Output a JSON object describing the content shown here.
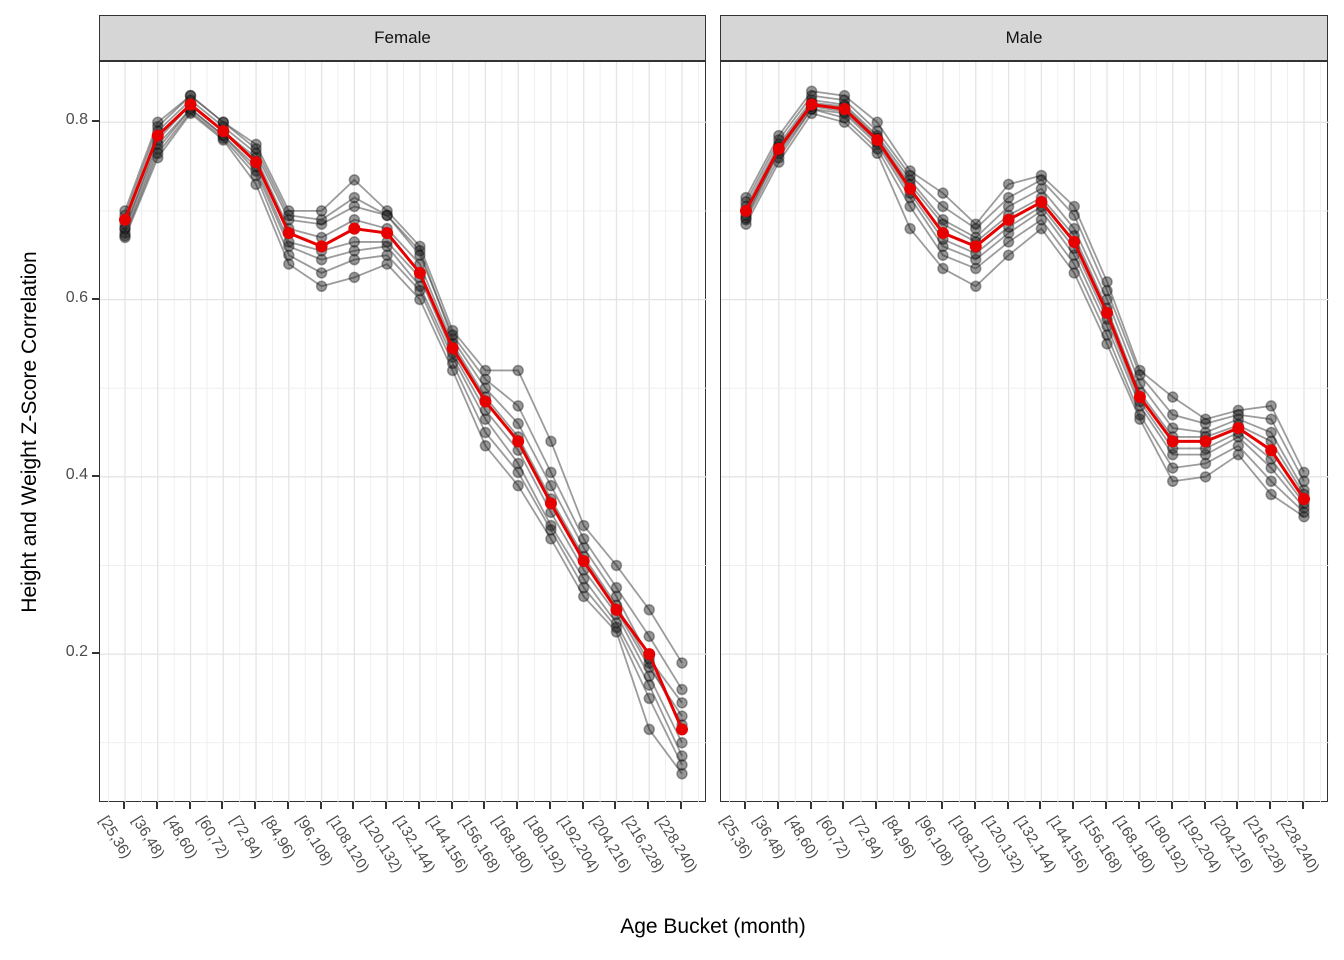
{
  "chart_data": {
    "type": "line",
    "title": "",
    "xlabel": "Age Bucket (month)",
    "ylabel": "Height and Weight Z-Score Correlation",
    "categories": [
      "[25,36)",
      "[36,48)",
      "[48,60)",
      "[60,72)",
      "[72,84)",
      "[84,96)",
      "[96,108)",
      "[108,120)",
      "[120,132)",
      "[132,144)",
      "[144,156)",
      "[156,168)",
      "[168,180)",
      "[180,192)",
      "[192,204)",
      "[204,216)",
      "[216,228)",
      "[228,240)"
    ],
    "yticks": [
      0.2,
      0.4,
      0.6,
      0.8
    ],
    "ylim": [
      0.032,
      0.868
    ],
    "grid": true,
    "legend": "none",
    "colors": {
      "mean_line": "#e60000",
      "individual_line": "#4a4a4a",
      "individual_point": "#1a1a1a",
      "grid_major": "#e4e4e4",
      "grid_minor": "#ededed",
      "strip_background": "#d6d6d6",
      "panel_border": "#333333",
      "axis_text": "#4d4d4d"
    },
    "facets": [
      {
        "label": "Female",
        "mean_series": {
          "name": "mean",
          "values": [
            0.69,
            0.785,
            0.82,
            0.79,
            0.755,
            0.675,
            0.66,
            0.68,
            0.675,
            0.63,
            0.545,
            0.485,
            0.44,
            0.37,
            0.305,
            0.25,
            0.2,
            0.115
          ]
        },
        "individual_series": [
          {
            "name": "individual_1",
            "values": [
              0.68,
              0.78,
              0.82,
              0.79,
              0.755,
              0.675,
              0.66,
              0.68,
              0.675,
              0.63,
              0.545,
              0.485,
              0.44,
              0.37,
              0.305,
              0.25,
              0.185,
              0.13
            ]
          },
          {
            "name": "individual_2",
            "values": [
              0.695,
              0.795,
              0.83,
              0.8,
              0.775,
              0.7,
              0.7,
              0.735,
              0.7,
              0.66,
              0.565,
              0.52,
              0.52,
              0.44,
              0.345,
              0.3,
              0.25,
              0.19
            ]
          },
          {
            "name": "individual_3",
            "values": [
              0.67,
              0.76,
              0.81,
              0.78,
              0.73,
              0.64,
              0.615,
              0.625,
              0.64,
              0.6,
              0.52,
              0.435,
              0.39,
              0.33,
              0.265,
              0.225,
              0.115,
              0.065
            ]
          },
          {
            "name": "individual_4",
            "values": [
              0.685,
              0.79,
              0.825,
              0.795,
              0.765,
              0.69,
              0.685,
              0.705,
              0.695,
              0.655,
              0.555,
              0.5,
              0.46,
              0.39,
              0.32,
              0.265,
              0.195,
              0.145
            ]
          },
          {
            "name": "individual_5",
            "values": [
              0.675,
              0.77,
              0.815,
              0.785,
              0.745,
              0.66,
              0.645,
              0.655,
              0.66,
              0.615,
              0.535,
              0.465,
              0.415,
              0.345,
              0.285,
              0.235,
              0.165,
              0.085
            ]
          },
          {
            "name": "individual_6",
            "values": [
              0.69,
              0.785,
              0.82,
              0.79,
              0.76,
              0.68,
              0.67,
              0.69,
              0.68,
              0.64,
              0.55,
              0.49,
              0.445,
              0.375,
              0.31,
              0.255,
              0.19,
              0.12
            ]
          },
          {
            "name": "individual_7",
            "values": [
              0.68,
              0.775,
              0.815,
              0.785,
              0.75,
              0.665,
              0.655,
              0.665,
              0.665,
              0.625,
              0.54,
              0.475,
              0.43,
              0.36,
              0.295,
              0.245,
              0.175,
              0.1
            ]
          },
          {
            "name": "individual_8",
            "values": [
              0.7,
              0.8,
              0.83,
              0.8,
              0.77,
              0.695,
              0.69,
              0.715,
              0.695,
              0.65,
              0.56,
              0.51,
              0.48,
              0.405,
              0.33,
              0.275,
              0.22,
              0.16
            ]
          },
          {
            "name": "individual_9",
            "values": [
              0.672,
              0.765,
              0.812,
              0.782,
              0.74,
              0.65,
              0.63,
              0.645,
              0.65,
              0.61,
              0.528,
              0.45,
              0.405,
              0.34,
              0.275,
              0.23,
              0.15,
              0.075
            ]
          }
        ]
      },
      {
        "label": "Male",
        "mean_series": {
          "name": "mean",
          "values": [
            0.7,
            0.77,
            0.82,
            0.815,
            0.78,
            0.725,
            0.675,
            0.66,
            0.69,
            0.71,
            0.665,
            0.585,
            0.49,
            0.44,
            0.44,
            0.455,
            0.43,
            0.375
          ]
        },
        "individual_series": [
          {
            "name": "individual_1",
            "values": [
              0.7,
              0.77,
              0.82,
              0.815,
              0.78,
              0.725,
              0.675,
              0.66,
              0.69,
              0.71,
              0.665,
              0.585,
              0.49,
              0.44,
              0.44,
              0.455,
              0.43,
              0.375
            ]
          },
          {
            "name": "individual_2",
            "values": [
              0.715,
              0.785,
              0.835,
              0.83,
              0.8,
              0.745,
              0.72,
              0.685,
              0.73,
              0.74,
              0.705,
              0.62,
              0.52,
              0.49,
              0.465,
              0.475,
              0.48,
              0.405
            ]
          },
          {
            "name": "individual_3",
            "values": [
              0.685,
              0.755,
              0.81,
              0.8,
              0.765,
              0.68,
              0.635,
              0.615,
              0.65,
              0.68,
              0.63,
              0.55,
              0.465,
              0.395,
              0.4,
              0.425,
              0.38,
              0.355
            ]
          },
          {
            "name": "individual_4",
            "values": [
              0.705,
              0.775,
              0.825,
              0.82,
              0.785,
              0.735,
              0.69,
              0.67,
              0.705,
              0.725,
              0.68,
              0.6,
              0.505,
              0.455,
              0.45,
              0.465,
              0.45,
              0.385
            ]
          },
          {
            "name": "individual_5",
            "values": [
              0.695,
              0.765,
              0.815,
              0.81,
              0.775,
              0.715,
              0.66,
              0.645,
              0.675,
              0.7,
              0.65,
              0.57,
              0.48,
              0.425,
              0.425,
              0.445,
              0.41,
              0.365
            ]
          },
          {
            "name": "individual_6",
            "values": [
              0.71,
              0.78,
              0.83,
              0.825,
              0.79,
              0.74,
              0.705,
              0.68,
              0.715,
              0.735,
              0.695,
              0.61,
              0.515,
              0.47,
              0.46,
              0.47,
              0.465,
              0.395
            ]
          },
          {
            "name": "individual_7",
            "values": [
              0.69,
              0.76,
              0.815,
              0.805,
              0.77,
              0.705,
              0.65,
              0.635,
              0.665,
              0.69,
              0.64,
              0.56,
              0.47,
              0.41,
              0.415,
              0.435,
              0.395,
              0.36
            ]
          },
          {
            "name": "individual_8",
            "values": [
              0.7,
              0.772,
              0.822,
              0.818,
              0.782,
              0.73,
              0.685,
              0.665,
              0.695,
              0.715,
              0.672,
              0.59,
              0.495,
              0.445,
              0.445,
              0.458,
              0.44,
              0.38
            ]
          },
          {
            "name": "individual_9",
            "values": [
              0.692,
              0.768,
              0.818,
              0.812,
              0.778,
              0.72,
              0.668,
              0.652,
              0.682,
              0.705,
              0.658,
              0.578,
              0.485,
              0.432,
              0.432,
              0.45,
              0.42,
              0.37
            ]
          }
        ]
      }
    ]
  }
}
